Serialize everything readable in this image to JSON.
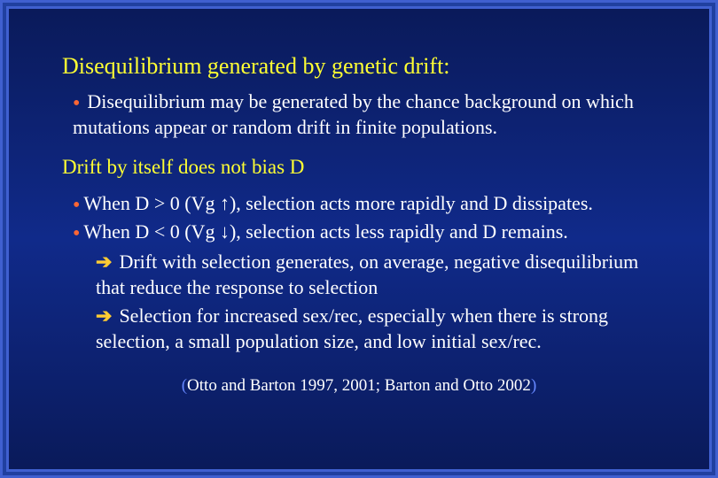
{
  "colors": {
    "background": "#000044",
    "gradient_top": "#0a1a5a",
    "gradient_mid": "#102a8a",
    "border_light": "#4060d0",
    "border_dark": "#2040a0",
    "title_text": "#ffff33",
    "body_text": "#ffffff",
    "bullet_dot": "#ff6633",
    "arrow": "#ffcc33",
    "paren": "#6688ff"
  },
  "title": "Disequilibrium generated by genetic drift:",
  "main_bullet": "Disequilibrium may be generated by the chance background on which mutations appear or random drift in finite populations.",
  "section": "Drift by itself does not bias D",
  "d_pos": "When D > 0 (Vg ↑), selection acts more rapidly and D dissipates.",
  "d_neg": "When D < 0 (Vg ↓), selection acts less rapidly and D remains.",
  "arrow1": "Drift with selection generates, on average, negative disequilibrium that reduce the response to selection",
  "arrow2": "Selection for increased sex/rec, especially when there is strong selection, a small population size, and low initial sex/rec.",
  "citation_open": "(",
  "citation_text": "Otto and Barton 1997, 2001; Barton and Otto 2002",
  "citation_close": ")"
}
